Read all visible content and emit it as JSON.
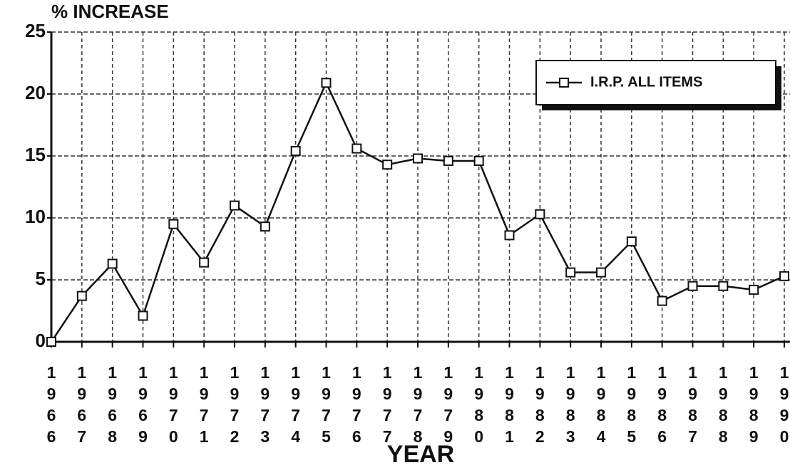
{
  "chart_data": {
    "type": "line",
    "title": "% INCREASE",
    "x_label": "YEAR",
    "categories": [
      "1966",
      "1967",
      "1968",
      "1969",
      "1970",
      "1971",
      "1972",
      "1973",
      "1974",
      "1975",
      "1976",
      "1977",
      "1978",
      "1979",
      "1980",
      "1981",
      "1982",
      "1983",
      "1984",
      "1985",
      "1986",
      "1987",
      "1988",
      "1989",
      "1990"
    ],
    "series": [
      {
        "name": "I.R.P. ALL ITEMS",
        "color": "#111111",
        "values": [
          0,
          3.7,
          6.3,
          2.1,
          9.5,
          6.4,
          11.0,
          9.3,
          15.4,
          20.9,
          15.6,
          14.3,
          14.8,
          14.6,
          14.6,
          8.6,
          10.3,
          5.6,
          5.6,
          8.1,
          3.3,
          4.5,
          4.5,
          4.2,
          5.3
        ]
      }
    ],
    "ylim": [
      0,
      25
    ],
    "yticks": [
      0,
      5,
      10,
      15,
      20,
      25
    ],
    "grid": true,
    "legend": "upper right"
  }
}
